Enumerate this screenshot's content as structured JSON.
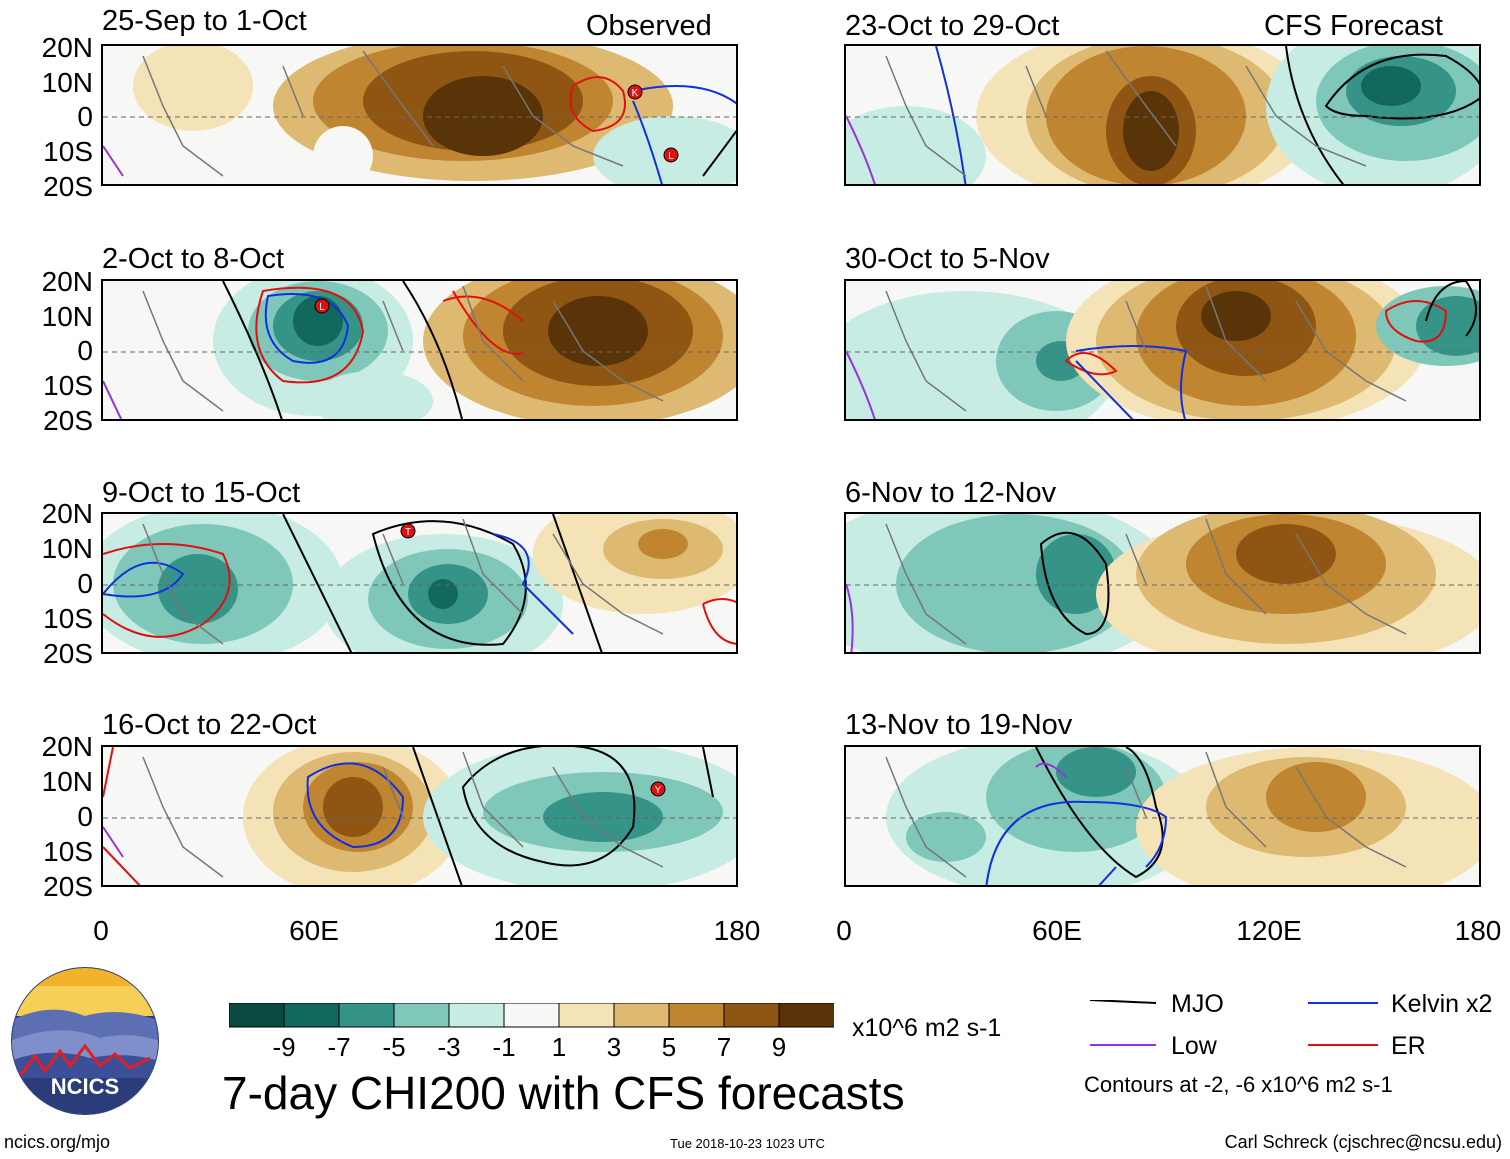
{
  "header": {
    "observed_label": "Observed",
    "forecast_label": "CFS Forecast"
  },
  "panels_left": [
    {
      "period": "25-Sep to 1-Oct"
    },
    {
      "period": "2-Oct to 8-Oct"
    },
    {
      "period": "9-Oct to 15-Oct"
    },
    {
      "period": "16-Oct to 22-Oct"
    }
  ],
  "panels_right": [
    {
      "period": "23-Oct to 29-Oct"
    },
    {
      "period": "30-Oct to 5-Nov"
    },
    {
      "period": "6-Nov to 12-Nov"
    },
    {
      "period": "13-Nov to 19-Nov"
    }
  ],
  "axes": {
    "lat_labels": [
      "20N",
      "10N",
      "0",
      "10S",
      "20S"
    ],
    "lon_labels": [
      "0",
      "60E",
      "120E",
      "180"
    ]
  },
  "storm_markers": [
    "K",
    "L",
    "L",
    "T",
    "Y"
  ],
  "colorbar": {
    "ticks": [
      "-9",
      "-7",
      "-5",
      "-3",
      "-1",
      "1",
      "3",
      "5",
      "7",
      "9"
    ],
    "units": "x10^6 m2 s-1",
    "colors": [
      "#0b4a40",
      "#13685d",
      "#359487",
      "#7fc8b9",
      "#c6ece3",
      "#f7f7f5",
      "#f5e3b8",
      "#ddb971",
      "#c08530",
      "#8f5613",
      "#5a3409"
    ]
  },
  "legend": {
    "mjo": "MJO",
    "kelvin": "Kelvin x2",
    "low": "Low",
    "er": "ER",
    "contour_note": "Contours at -2, -6 x10^6 m2 s-1",
    "colors": {
      "mjo": "#000000",
      "kelvin": "#1030e0",
      "low": "#9b30e0",
      "er": "#e01010"
    }
  },
  "footer": {
    "main_title": "7-day CHI200 with CFS forecasts",
    "logo_text": "NCICS",
    "url": "ncics.org/mjo",
    "timestamp": "Tue 2018-10-23 1023 UTC",
    "author": "Carl Schreck (cjschrec@ncsu.edu)"
  }
}
